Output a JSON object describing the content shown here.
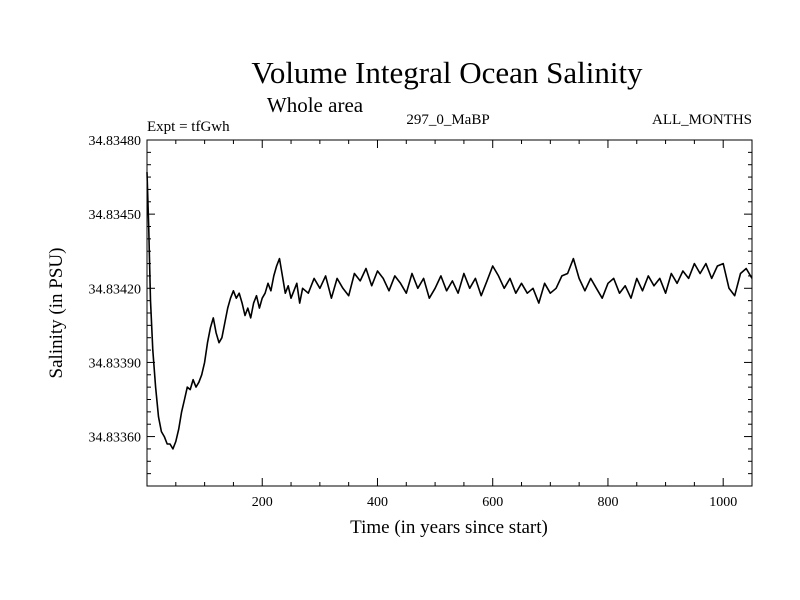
{
  "chart_data": {
    "type": "line",
    "title": "Volume Integral Ocean Salinity",
    "subtitle": "Whole area",
    "header_left": "Expt = tfGwh",
    "header_center": "297_0_MaBP",
    "header_right": "ALL_MONTHS",
    "xlabel": "Time (in years since start)",
    "ylabel": "Salinity (in PSU)",
    "xlim": [
      0,
      1050
    ],
    "ylim": [
      34.8334,
      34.8348
    ],
    "x_ticks": [
      200,
      400,
      600,
      800,
      1000
    ],
    "x_tick_labels": [
      "200",
      "400",
      "600",
      "800",
      "1000"
    ],
    "y_ticks": [
      34.8336,
      34.8339,
      34.8342,
      34.8345,
      34.8348
    ],
    "y_tick_labels": [
      "34.83360",
      "34.83390",
      "34.83420",
      "34.83450",
      "34.83480"
    ],
    "grid": false,
    "series": [
      {
        "name": "Salinity",
        "color": "#000000",
        "x": [
          0,
          3,
          6,
          10,
          15,
          20,
          25,
          30,
          35,
          40,
          45,
          50,
          55,
          60,
          65,
          70,
          75,
          80,
          85,
          90,
          95,
          100,
          105,
          110,
          115,
          120,
          125,
          130,
          135,
          140,
          145,
          150,
          155,
          160,
          165,
          170,
          175,
          180,
          185,
          190,
          195,
          200,
          205,
          210,
          215,
          220,
          225,
          230,
          235,
          240,
          245,
          250,
          255,
          260,
          265,
          270,
          280,
          290,
          300,
          310,
          320,
          330,
          340,
          350,
          360,
          370,
          380,
          390,
          400,
          410,
          420,
          430,
          440,
          450,
          460,
          470,
          480,
          490,
          500,
          510,
          520,
          530,
          540,
          550,
          560,
          570,
          580,
          590,
          600,
          610,
          620,
          630,
          640,
          650,
          660,
          670,
          680,
          690,
          700,
          710,
          720,
          730,
          740,
          750,
          760,
          770,
          780,
          790,
          800,
          810,
          820,
          830,
          840,
          850,
          860,
          870,
          880,
          890,
          900,
          910,
          920,
          930,
          940,
          950,
          960,
          970,
          980,
          990,
          1000,
          1010,
          1020,
          1030,
          1040,
          1050
        ],
        "values": [
          34.83467,
          34.83445,
          34.83415,
          34.83395,
          34.8338,
          34.83368,
          34.83362,
          34.8336,
          34.83357,
          34.83357,
          34.83355,
          34.83358,
          34.83363,
          34.8337,
          34.83375,
          34.8338,
          34.83379,
          34.83383,
          34.8338,
          34.83382,
          34.83385,
          34.8339,
          34.83398,
          34.83404,
          34.83408,
          34.83402,
          34.83398,
          34.834,
          34.83406,
          34.83412,
          34.83416,
          34.83419,
          34.83416,
          34.83418,
          34.83414,
          34.83409,
          34.83412,
          34.83408,
          34.83414,
          34.83417,
          34.83412,
          34.83416,
          34.83418,
          34.83422,
          34.83419,
          34.83425,
          34.83429,
          34.83432,
          34.83425,
          34.83418,
          34.83421,
          34.83416,
          34.83419,
          34.83422,
          34.83414,
          34.8342,
          34.83418,
          34.83424,
          34.8342,
          34.83425,
          34.83416,
          34.83424,
          34.8342,
          34.83417,
          34.83426,
          34.83423,
          34.83428,
          34.83421,
          34.83427,
          34.83424,
          34.83419,
          34.83425,
          34.83422,
          34.83418,
          34.83426,
          34.8342,
          34.83424,
          34.83416,
          34.8342,
          34.83425,
          34.83419,
          34.83423,
          34.83418,
          34.83426,
          34.8342,
          34.83424,
          34.83417,
          34.83423,
          34.83429,
          34.83425,
          34.8342,
          34.83424,
          34.83418,
          34.83422,
          34.83418,
          34.8342,
          34.83414,
          34.83422,
          34.83418,
          34.8342,
          34.83425,
          34.83426,
          34.83432,
          34.83424,
          34.83419,
          34.83424,
          34.8342,
          34.83416,
          34.83422,
          34.83424,
          34.83418,
          34.83421,
          34.83416,
          34.83424,
          34.83419,
          34.83425,
          34.83421,
          34.83424,
          34.83418,
          34.83426,
          34.83422,
          34.83427,
          34.83424,
          34.8343,
          34.83426,
          34.8343,
          34.83424,
          34.83429,
          34.8343,
          34.8342,
          34.83417,
          34.83426,
          34.83428,
          34.83424
        ]
      }
    ]
  }
}
